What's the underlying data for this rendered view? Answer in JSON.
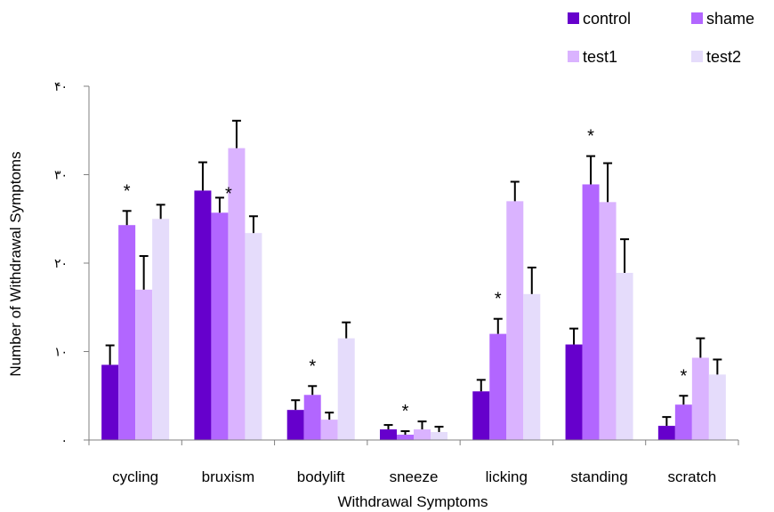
{
  "chart_data": {
    "type": "bar",
    "title": "",
    "xlabel": "Withdrawal Symptoms",
    "ylabel": "Number of Withdrawal Symptoms",
    "ylim": [
      0,
      40
    ],
    "yticks": [
      0,
      10,
      20,
      30,
      40
    ],
    "ytick_labels": [
      "٠",
      "١٠",
      "٢٠",
      "٣٠",
      "۴٠"
    ],
    "grid": false,
    "legend": "top-right",
    "categories": [
      "cycling",
      "bruxism",
      "bodylift",
      "sneeze",
      "licking",
      "standing",
      "scratch"
    ],
    "series": [
      {
        "name": "control",
        "color": "#6600cc",
        "values": [
          8.5,
          28.2,
          3.4,
          1.2,
          5.5,
          10.8,
          1.6
        ],
        "errors": [
          2.2,
          3.2,
          1.1,
          0.5,
          1.3,
          1.8,
          1.0
        ]
      },
      {
        "name": "shame",
        "color": "#b266ff",
        "values": [
          24.3,
          25.7,
          5.1,
          0.6,
          12.0,
          28.9,
          4.0
        ],
        "errors": [
          1.6,
          1.7,
          1.0,
          0.4,
          1.7,
          3.2,
          1.0
        ]
      },
      {
        "name": "test1",
        "color": "#dab3ff",
        "values": [
          17.0,
          33.0,
          2.3,
          1.2,
          27.0,
          26.9,
          9.3
        ],
        "errors": [
          3.8,
          3.1,
          0.8,
          0.9,
          2.2,
          4.4,
          2.2
        ]
      },
      {
        "name": "test2",
        "color": "#e5dcfb",
        "values": [
          25.0,
          23.4,
          11.5,
          0.9,
          16.5,
          18.9,
          7.4
        ],
        "errors": [
          1.6,
          1.9,
          1.8,
          0.6,
          3.0,
          3.8,
          1.7
        ]
      }
    ],
    "annotations": [
      {
        "text": "*",
        "category": "cycling",
        "series": "shame"
      },
      {
        "text": "*",
        "category": "bruxism",
        "series": "shame"
      },
      {
        "text": "*",
        "category": "bodylift",
        "series": "shame"
      },
      {
        "text": "*",
        "category": "sneeze",
        "series": "shame"
      },
      {
        "text": "*",
        "category": "licking",
        "series": "shame"
      },
      {
        "text": "*",
        "category": "standing",
        "series": "shame"
      },
      {
        "text": "*",
        "category": "scratch",
        "series": "shame"
      }
    ]
  }
}
